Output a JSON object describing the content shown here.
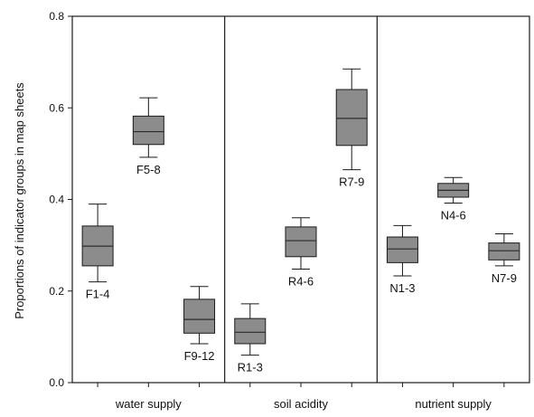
{
  "chart_data": {
    "type": "boxplot",
    "title": "",
    "xlabel": "",
    "ylabel": "Proportions of indicator groups in map sheets",
    "ylim": [
      0.0,
      0.8
    ],
    "yticks": [
      "0.0",
      "0.2",
      "0.4",
      "0.6",
      "0.8"
    ],
    "grid": false,
    "groups": [
      {
        "name": "water supply",
        "boxes": [
          {
            "label": "F1-4",
            "whisker_low": 0.22,
            "q1": 0.255,
            "median": 0.298,
            "q3": 0.342,
            "whisker_high": 0.39
          },
          {
            "label": "F5-8",
            "whisker_low": 0.492,
            "q1": 0.52,
            "median": 0.548,
            "q3": 0.582,
            "whisker_high": 0.622
          },
          {
            "label": "F9-12",
            "whisker_low": 0.085,
            "q1": 0.108,
            "median": 0.138,
            "q3": 0.182,
            "whisker_high": 0.21
          }
        ]
      },
      {
        "name": "soil acidity",
        "boxes": [
          {
            "label": "R1-3",
            "whisker_low": 0.06,
            "q1": 0.085,
            "median": 0.11,
            "q3": 0.14,
            "whisker_high": 0.172
          },
          {
            "label": "R4-6",
            "whisker_low": 0.248,
            "q1": 0.275,
            "median": 0.31,
            "q3": 0.34,
            "whisker_high": 0.36
          },
          {
            "label": "R7-9",
            "whisker_low": 0.465,
            "q1": 0.518,
            "median": 0.577,
            "q3": 0.64,
            "whisker_high": 0.685
          }
        ]
      },
      {
        "name": "nutrient supply",
        "boxes": [
          {
            "label": "N1-3",
            "whisker_low": 0.233,
            "q1": 0.262,
            "median": 0.292,
            "q3": 0.318,
            "whisker_high": 0.343
          },
          {
            "label": "N4-6",
            "whisker_low": 0.392,
            "q1": 0.405,
            "median": 0.42,
            "q3": 0.435,
            "whisker_high": 0.448
          },
          {
            "label": "N7-9",
            "whisker_low": 0.255,
            "q1": 0.268,
            "median": 0.288,
            "q3": 0.305,
            "whisker_high": 0.325
          }
        ]
      }
    ],
    "colors": {
      "box_fill": "#8c8c8c",
      "line": "#1a1a1a",
      "median": "#2b2b2b"
    }
  }
}
